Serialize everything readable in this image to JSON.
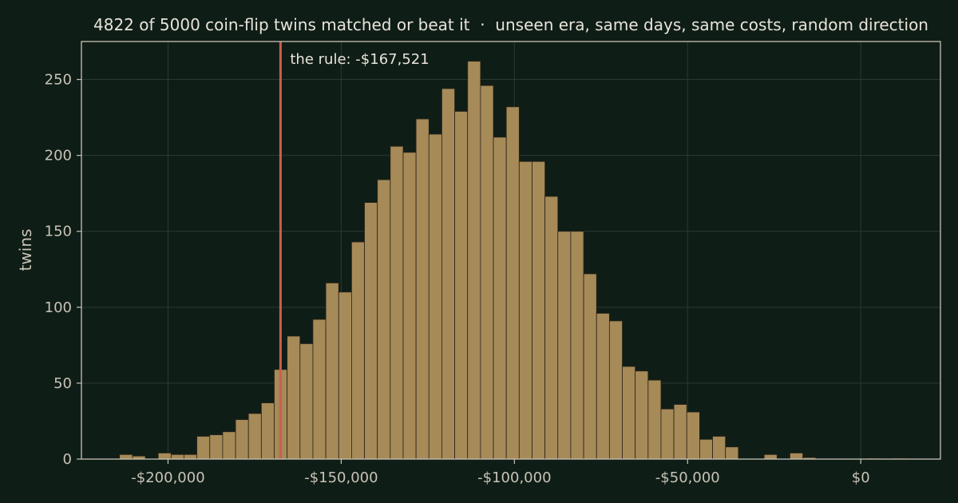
{
  "colors": {
    "background": "#0f1d17",
    "bar_fill": "#a68a58",
    "bar_edge": "#2a2418",
    "rule_line": "#cc5f4f",
    "grid": "#2a3a31",
    "axis": "#c8c3b5",
    "text": "#e8e4da",
    "tick_text": "#c8c3b5"
  },
  "chart_data": {
    "type": "bar",
    "title": "4822 of 5000 coin-flip twins matched or beat it  ·  unseen era, same days, same costs, random direction",
    "xlabel": "",
    "ylabel": "twins",
    "xlim": [
      -225000,
      23000
    ],
    "ylim": [
      0,
      275
    ],
    "grid": true,
    "bin_width": 3722,
    "bin_start": -214000,
    "values": [
      3,
      2,
      0,
      4,
      3,
      3,
      15,
      16,
      18,
      26,
      30,
      37,
      59,
      81,
      76,
      92,
      116,
      110,
      143,
      169,
      184,
      206,
      202,
      224,
      214,
      244,
      229,
      262,
      246,
      212,
      232,
      196,
      196,
      173,
      150,
      150,
      122,
      96,
      91,
      61,
      58,
      52,
      33,
      36,
      31,
      13,
      15,
      8,
      0,
      0,
      3,
      0,
      4,
      1,
      0,
      0,
      0,
      0,
      0.5,
      0,
      0.5,
      0,
      0
    ],
    "marker": {
      "x": -167521,
      "label": "the rule: -$167,521"
    },
    "xticks": [
      {
        "value": -200000,
        "label": "-$200,000"
      },
      {
        "value": -150000,
        "label": "-$150,000"
      },
      {
        "value": -100000,
        "label": "-$100,000"
      },
      {
        "value": -50000,
        "label": "-$50,000"
      },
      {
        "value": 0,
        "label": "$0"
      }
    ],
    "yticks": [
      {
        "value": 0,
        "label": "0"
      },
      {
        "value": 50,
        "label": "50"
      },
      {
        "value": 100,
        "label": "100"
      },
      {
        "value": 150,
        "label": "150"
      },
      {
        "value": 200,
        "label": "200"
      },
      {
        "value": 250,
        "label": "250"
      }
    ]
  }
}
